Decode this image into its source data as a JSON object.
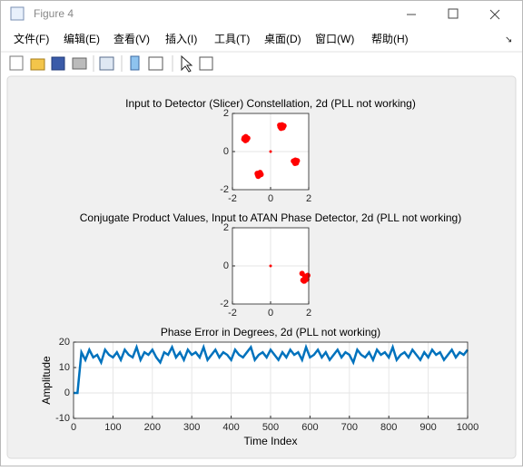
{
  "window": {
    "title": "Figure 4",
    "menus": [
      "文件(F)",
      "编辑(E)",
      "查看(V)",
      "插入(I)",
      "工具(T)",
      "桌面(D)",
      "窗口(W)",
      "帮助(H)"
    ]
  },
  "chart_data": [
    {
      "type": "scatter",
      "title": "Input to Detector (Slicer) Constellation, 2d (PLL not working)",
      "color": "#ff0000",
      "x": [
        -1.4,
        -1.3,
        -1.25,
        -1.38,
        -1.32,
        -1.2,
        0.5,
        0.6,
        0.65,
        0.55,
        0.7,
        0.48,
        1.2,
        1.3,
        1.35,
        1.25,
        1.4,
        1.28,
        -0.7,
        -0.6,
        -0.55,
        -0.65,
        -0.5,
        -0.68,
        0
      ],
      "y": [
        0.65,
        0.78,
        0.62,
        0.72,
        0.58,
        0.7,
        1.3,
        1.4,
        1.25,
        1.22,
        1.35,
        1.38,
        -0.5,
        -0.45,
        -0.6,
        -0.55,
        -0.48,
        -0.62,
        -1.15,
        -1.25,
        -1.1,
        -1.3,
        -1.2,
        -1.22,
        0
      ],
      "xlim": [
        -2,
        2
      ],
      "ylim": [
        -2,
        2
      ],
      "xticks": [
        -2,
        0,
        2
      ],
      "yticks": [
        -2,
        0,
        2
      ],
      "grid": true
    },
    {
      "type": "scatter",
      "title": "Conjugate Product Values, Input to ATAN Phase Detector, 2d (PLL not working)",
      "color": "#ff0000",
      "x": [
        0,
        1.65,
        1.8,
        1.9,
        1.75,
        1.85,
        1.95,
        1.7,
        1.82
      ],
      "y": [
        0,
        -0.4,
        -0.55,
        -0.7,
        -0.8,
        -0.65,
        -0.5,
        -0.75,
        -0.85
      ],
      "xlim": [
        -2,
        2
      ],
      "ylim": [
        -2,
        2
      ],
      "xticks": [
        -2,
        0,
        2
      ],
      "yticks": [
        -2,
        0,
        2
      ],
      "grid": true
    },
    {
      "type": "line",
      "title": "Phase Error in Degrees, 2d (PLL not working)",
      "xlabel": "Time Index",
      "ylabel": "Amplitude",
      "color": "#0072bd",
      "x": [
        0,
        10,
        20,
        30,
        40,
        50,
        60,
        70,
        80,
        90,
        100,
        110,
        120,
        130,
        140,
        150,
        160,
        170,
        180,
        190,
        200,
        210,
        220,
        230,
        240,
        250,
        260,
        270,
        280,
        290,
        300,
        310,
        320,
        330,
        340,
        350,
        360,
        370,
        380,
        390,
        400,
        410,
        420,
        430,
        440,
        450,
        460,
        470,
        480,
        490,
        500,
        510,
        520,
        530,
        540,
        550,
        560,
        570,
        580,
        590,
        600,
        610,
        620,
        630,
        640,
        650,
        660,
        670,
        680,
        690,
        700,
        710,
        720,
        730,
        740,
        750,
        760,
        770,
        780,
        790,
        800,
        810,
        820,
        830,
        840,
        850,
        860,
        870,
        880,
        890,
        900,
        910,
        920,
        930,
        940,
        950,
        960,
        970,
        980,
        990,
        1000
      ],
      "values": [
        0,
        0,
        16,
        13,
        17,
        14,
        15,
        12,
        17,
        15,
        14,
        16,
        13,
        17,
        15,
        14,
        18,
        13,
        16,
        15,
        17,
        14,
        12,
        16,
        15,
        18,
        14,
        16,
        13,
        17,
        15,
        16,
        14,
        18,
        13,
        15,
        17,
        14,
        16,
        15,
        13,
        17,
        15,
        14,
        16,
        18,
        13,
        15,
        16,
        14,
        17,
        15,
        13,
        16,
        14,
        17,
        15,
        16,
        13,
        18,
        14,
        15,
        17,
        14,
        16,
        13,
        15,
        17,
        14,
        16,
        15,
        12,
        17,
        15,
        14,
        16,
        13,
        17,
        15,
        16,
        14,
        18,
        13,
        15,
        16,
        14,
        17,
        15,
        13,
        16,
        14,
        17,
        15,
        16,
        13,
        15,
        17,
        14,
        16,
        15,
        17
      ],
      "xlim": [
        0,
        1000
      ],
      "ylim": [
        -10,
        20
      ],
      "xticks": [
        0,
        100,
        200,
        300,
        400,
        500,
        600,
        700,
        800,
        900,
        1000
      ],
      "yticks": [
        -10,
        0,
        10,
        20
      ],
      "grid": true
    }
  ]
}
